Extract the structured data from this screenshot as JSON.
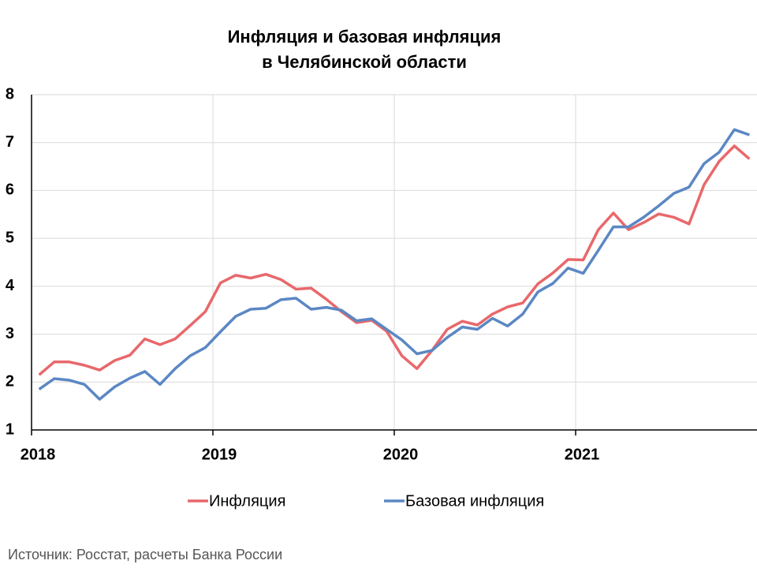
{
  "chart_data": {
    "type": "line",
    "title": [
      "Инфляция и базовая инфляция",
      "в  Челябинской области"
    ],
    "categories": [
      "2018",
      null,
      null,
      null,
      null,
      null,
      null,
      null,
      null,
      null,
      null,
      null,
      "2019",
      null,
      null,
      null,
      null,
      null,
      null,
      null,
      null,
      null,
      null,
      null,
      "2020",
      null,
      null,
      null,
      null,
      null,
      null,
      null,
      null,
      null,
      null,
      null,
      "2021",
      null,
      null,
      null,
      null,
      null,
      null,
      null,
      null,
      null,
      null,
      null
    ],
    "series": [
      {
        "name": "Инфляция",
        "color": "#e8686b",
        "values": [
          2.15,
          2.42,
          2.42,
          2.35,
          2.25,
          2.45,
          2.56,
          2.9,
          2.78,
          2.9,
          3.18,
          3.47,
          4.07,
          4.23,
          4.17,
          4.25,
          4.14,
          3.94,
          3.96,
          3.73,
          3.47,
          3.24,
          3.29,
          3.06,
          2.55,
          2.28,
          2.66,
          3.1,
          3.27,
          3.19,
          3.42,
          3.57,
          3.65,
          4.05,
          4.28,
          4.56,
          4.55,
          5.18,
          5.53,
          5.18,
          5.33,
          5.51,
          5.44,
          5.3,
          6.12,
          6.61,
          6.93,
          6.66
        ]
      },
      {
        "name": "Базовая инфляция",
        "color": "#5b87c4",
        "values": [
          1.85,
          2.07,
          2.04,
          1.95,
          1.64,
          1.9,
          2.08,
          2.22,
          1.95,
          2.28,
          2.55,
          2.72,
          3.05,
          3.37,
          3.52,
          3.54,
          3.72,
          3.75,
          3.52,
          3.56,
          3.5,
          3.28,
          3.32,
          3.1,
          2.88,
          2.59,
          2.66,
          2.93,
          3.15,
          3.1,
          3.33,
          3.17,
          3.42,
          3.88,
          4.06,
          4.38,
          4.27,
          4.75,
          5.24,
          5.24,
          5.44,
          5.68,
          5.94,
          6.07,
          6.56,
          6.8,
          7.27,
          7.16
        ]
      }
    ],
    "ylim": [
      1,
      8
    ],
    "yticks": [
      1,
      2,
      3,
      4,
      5,
      6,
      7,
      8
    ],
    "grid": true,
    "legend": "bottom",
    "source": "Источник: Росстат, расчеты Банка России"
  }
}
